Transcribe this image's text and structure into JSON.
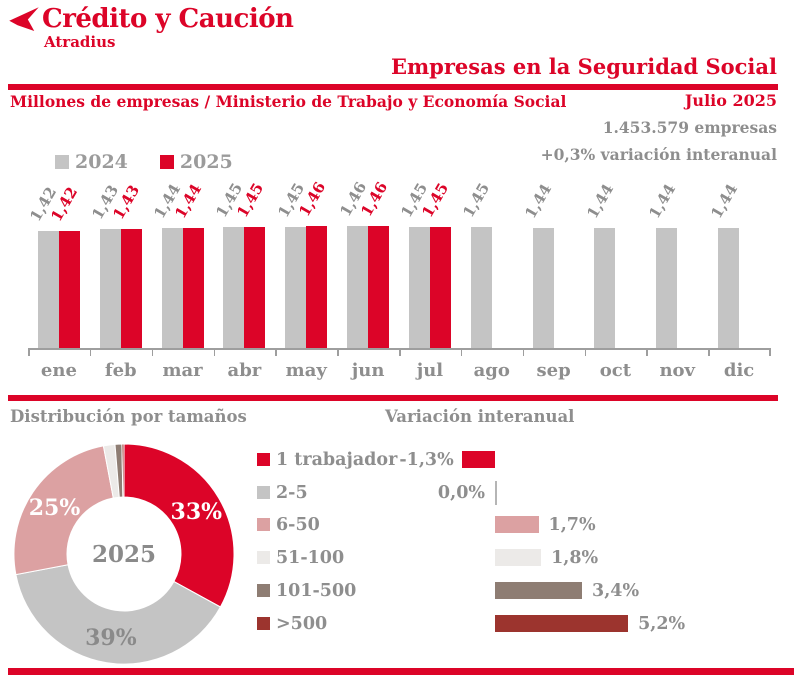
{
  "header": {
    "brand": "Crédito y Caución",
    "brand_sub": "Atradius",
    "title": "Empresas en la Seguridad Social"
  },
  "subheader": {
    "left": "Millones de empresas / Ministerio de Trabajo y Economía Social",
    "right": "Julio 2025"
  },
  "stats": {
    "total": "1.453.579 empresas",
    "variation": "+0,3% variación interanual"
  },
  "colors": {
    "brand_red": "#dc0428",
    "gray_bar": "#c4c4c4",
    "text_gray": "#8e8e8e",
    "legend_text_gray": "#9b9b9b",
    "axis_gray": "#9e9e9e",
    "pink": "#dca1a2",
    "light_gray": "#eceae8",
    "brown": "#8e7d73",
    "dark_red": "#9c342e",
    "donut_center_text": "#8a8a8a"
  },
  "sections": {
    "distribution_title": "Distribución por tamaños",
    "variation_title": "Variación interanual"
  },
  "chart_data": [
    {
      "type": "bar",
      "title": "Millones de empresas / Ministerio de Trabajo y Economía Social",
      "categories": [
        "ene",
        "feb",
        "mar",
        "abr",
        "may",
        "jun",
        "jul",
        "ago",
        "sep",
        "oct",
        "nov",
        "dic"
      ],
      "series": [
        {
          "name": "2024",
          "color": "#c4c4c4",
          "label_color": "#8e8e8e",
          "values": [
            1.42,
            1.43,
            1.44,
            1.45,
            1.45,
            1.46,
            1.45,
            1.45,
            1.44,
            1.44,
            1.44,
            1.44
          ],
          "labels": [
            "1,42",
            "1,43",
            "1,44",
            "1,45",
            "1,45",
            "1,46",
            "1,45",
            "1,45",
            "1,44",
            "1,44",
            "1,44",
            "1,44"
          ]
        },
        {
          "name": "2025",
          "color": "#dc0428",
          "label_color": "#dc0428",
          "values": [
            1.42,
            1.43,
            1.44,
            1.45,
            1.46,
            1.46,
            1.45,
            null,
            null,
            null,
            null,
            null
          ],
          "labels": [
            "1,42",
            "1,43",
            "1,44",
            "1,45",
            "1,46",
            "1,46",
            "1,45",
            null,
            null,
            null,
            null,
            null
          ]
        }
      ],
      "value_labels_rotated_deg": -60,
      "legend_position": "top-left",
      "grid": false
    },
    {
      "type": "pie",
      "title": "Distribución por tamaños",
      "center_label": "2025",
      "slices": [
        {
          "label": "1 trabajador",
          "value": 33,
          "color": "#dc0428",
          "display": "33%",
          "display_color": "#ffffff"
        },
        {
          "label": "2-5",
          "value": 39,
          "color": "#c4c4c4",
          "display": "39%",
          "display_color": "#8a8a8a"
        },
        {
          "label": "6-50",
          "value": 25,
          "color": "#dca1a2",
          "display": "25%",
          "display_color": "#ffffff"
        },
        {
          "label": "51-100",
          "value": 1.7,
          "color": "#eceae8",
          "display": "",
          "display_color": ""
        },
        {
          "label": "101-500",
          "value": 1.0,
          "color": "#8e7d73",
          "display": "",
          "display_color": ""
        },
        {
          "label": ">500",
          "value": 0.3,
          "color": "#9c342e",
          "display": "",
          "display_color": ""
        }
      ],
      "donut": true
    },
    {
      "type": "bar",
      "orientation": "horizontal",
      "title": "Variación interanual",
      "categories": [
        "1 trabajador",
        "2-5",
        "6-50",
        "51-100",
        "101-500",
        ">500"
      ],
      "values": [
        -1.3,
        0.0,
        1.7,
        1.8,
        3.4,
        5.2
      ],
      "value_labels": [
        "-1,3%",
        "0,0%",
        "1,7%",
        "1,8%",
        "3,4%",
        "5,2%"
      ],
      "bar_colors": [
        "#dc0428",
        "#c4c4c4",
        "#dca1a2",
        "#eceae8",
        "#8e7d73",
        "#9c342e"
      ],
      "xlim": [
        -1.5,
        6
      ]
    }
  ]
}
